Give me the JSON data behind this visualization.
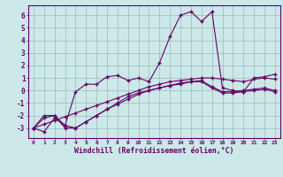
{
  "x": [
    0,
    1,
    2,
    3,
    4,
    5,
    6,
    7,
    8,
    9,
    10,
    11,
    12,
    13,
    14,
    15,
    16,
    17,
    18,
    19,
    20,
    21,
    22,
    23
  ],
  "line_main": [
    -3.0,
    -2.0,
    -2.0,
    -2.8,
    -0.1,
    0.5,
    0.5,
    1.1,
    1.2,
    0.8,
    1.0,
    0.7,
    2.2,
    4.3,
    6.0,
    6.3,
    5.5,
    6.3,
    0.2,
    0.0,
    -0.1,
    1.0,
    1.1,
    1.3
  ],
  "line_diag1": [
    -3.0,
    -2.2,
    -2.0,
    -3.0,
    -3.0,
    -2.5,
    -2.0,
    -1.5,
    -1.0,
    -0.5,
    -0.2,
    0.0,
    0.2,
    0.4,
    0.6,
    0.7,
    0.8,
    0.3,
    -0.1,
    -0.1,
    0.0,
    0.1,
    0.2,
    0.0
  ],
  "line_diag2": [
    -3.0,
    -3.3,
    -2.2,
    -2.8,
    -3.0,
    -2.5,
    -2.0,
    -1.5,
    -1.1,
    -0.7,
    -0.3,
    0.0,
    0.2,
    0.4,
    0.5,
    0.7,
    0.7,
    0.2,
    -0.2,
    -0.2,
    -0.1,
    0.0,
    0.1,
    -0.1
  ],
  "line_straight": [
    -3.0,
    -2.7,
    -2.4,
    -2.1,
    -1.8,
    -1.5,
    -1.2,
    -0.9,
    -0.6,
    -0.3,
    0.0,
    0.3,
    0.5,
    0.7,
    0.8,
    0.9,
    1.0,
    1.0,
    0.9,
    0.8,
    0.7,
    0.9,
    1.0,
    0.9
  ],
  "color": "#660066",
  "bg_color": "#cce8e8",
  "grid_color": "#99bbbb",
  "xlabel": "Windchill (Refroidissement éolien,°C)",
  "xlim": [
    -0.5,
    23.5
  ],
  "ylim": [
    -3.8,
    6.8
  ],
  "yticks": [
    -3,
    -2,
    -1,
    0,
    1,
    2,
    3,
    4,
    5,
    6
  ],
  "xticks": [
    0,
    1,
    2,
    3,
    4,
    5,
    6,
    7,
    8,
    9,
    10,
    11,
    12,
    13,
    14,
    15,
    16,
    17,
    18,
    19,
    20,
    21,
    22,
    23
  ]
}
